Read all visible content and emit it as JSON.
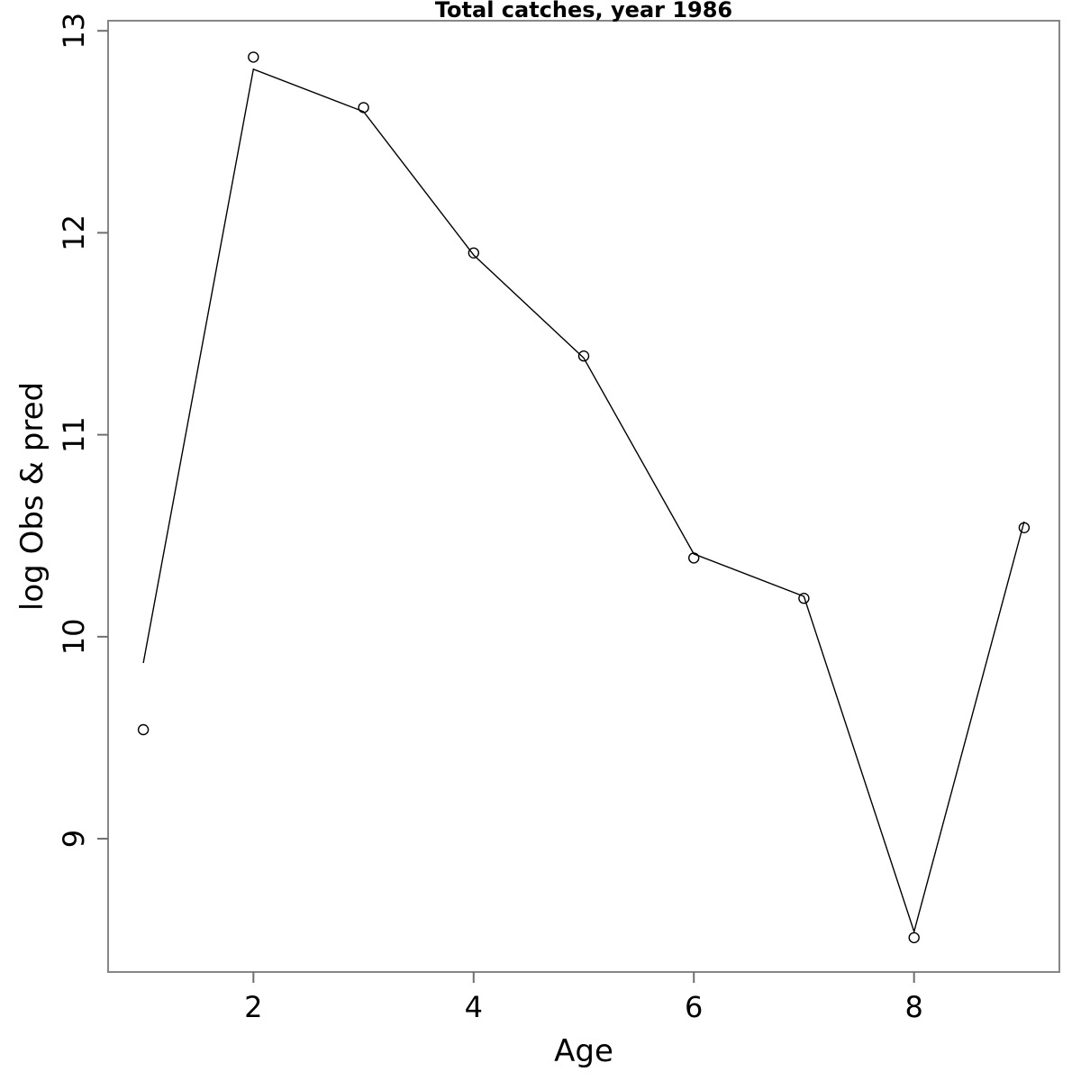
{
  "chart_data": {
    "type": "line",
    "title": "Total catches, year 1986",
    "xlabel": "Age",
    "ylabel": "log Obs & pred",
    "x": [
      1,
      2,
      3,
      4,
      5,
      6,
      7,
      8,
      9
    ],
    "series": [
      {
        "name": "Observed (points)",
        "style": "open-circle-markers",
        "draw_line": false,
        "values": [
          9.54,
          12.87,
          12.62,
          11.9,
          11.39,
          10.39,
          10.19,
          8.51,
          10.54
        ]
      },
      {
        "name": "Predicted (line)",
        "style": "thin-solid-line",
        "draw_line": true,
        "values": [
          9.87,
          12.81,
          12.6,
          11.89,
          11.38,
          10.41,
          10.2,
          8.54,
          10.57
        ]
      }
    ],
    "xticks": [
      2,
      4,
      6,
      8
    ],
    "yticks": [
      9,
      10,
      11,
      12,
      13
    ],
    "xlim": [
      0.68,
      9.32
    ],
    "ylim": [
      8.34,
      13.05
    ],
    "grid": false,
    "legend_position": "none",
    "colors": {
      "box": "#868686",
      "tick": "#6e6e6e",
      "line": "#000000",
      "marker_stroke": "#000000",
      "text": "#000000",
      "background": "#ffffff"
    }
  }
}
